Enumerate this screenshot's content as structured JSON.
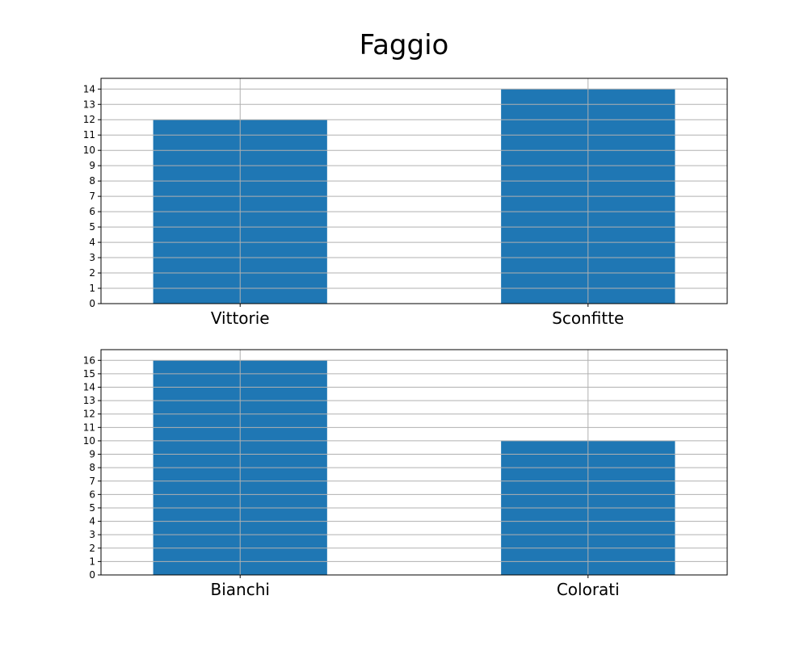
{
  "figure": {
    "title": "Faggio",
    "bar_color": "#1f77b4",
    "grid_color": "#b0b0b0"
  },
  "chart_data": [
    {
      "type": "bar",
      "categories": [
        "Vittorie",
        "Sconfitte"
      ],
      "values": [
        12,
        14
      ],
      "ylim": [
        0,
        14.7
      ],
      "yticks": [
        0,
        1,
        2,
        3,
        4,
        5,
        6,
        7,
        8,
        9,
        10,
        11,
        12,
        13,
        14
      ],
      "grid": true
    },
    {
      "type": "bar",
      "categories": [
        "Bianchi",
        "Colorati"
      ],
      "values": [
        16,
        10
      ],
      "ylim": [
        0,
        16.8
      ],
      "yticks": [
        0,
        1,
        2,
        3,
        4,
        5,
        6,
        7,
        8,
        9,
        10,
        11,
        12,
        13,
        14,
        15,
        16
      ],
      "grid": true
    }
  ]
}
